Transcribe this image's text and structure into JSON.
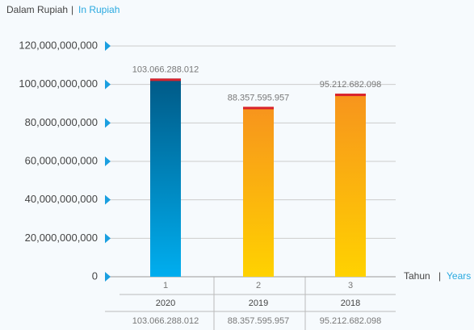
{
  "chart_data": {
    "type": "bar",
    "title_parts": [
      "Dalam Rupiah",
      "|",
      "In Rupiah"
    ],
    "x_label_parts": [
      "Tahun",
      "|",
      "Years"
    ],
    "categories": [
      "2020",
      "2019",
      "2018"
    ],
    "index_labels": [
      1,
      2,
      3
    ],
    "values": [
      103066288012,
      88357595957,
      95212682098
    ],
    "value_labels": [
      "103.066.288.012",
      "88.357.595.957",
      "95.212.682.098"
    ],
    "colors": [
      [
        "#005a87",
        "#00aeef"
      ],
      [
        "#f7941d",
        "#ffd200"
      ],
      [
        "#f7941d",
        "#ffd200"
      ]
    ],
    "cap_color": "#d9232d",
    "ylim": [
      0,
      120000000000
    ],
    "yticks": [
      0,
      {
        "value": 20000000000,
        "label": "20,000,000,000"
      },
      {
        "value": 40000000000,
        "label": "40,000,000,000"
      },
      {
        "value": 60000000000,
        "label": "60,000,000,000"
      },
      {
        "value": 80000000000,
        "label": "80,000,000,000"
      },
      {
        "value": 100000000000,
        "label": "100,000,000,000"
      },
      {
        "value": 120000000000,
        "label": "120,000,000,000"
      }
    ],
    "grid": true
  }
}
